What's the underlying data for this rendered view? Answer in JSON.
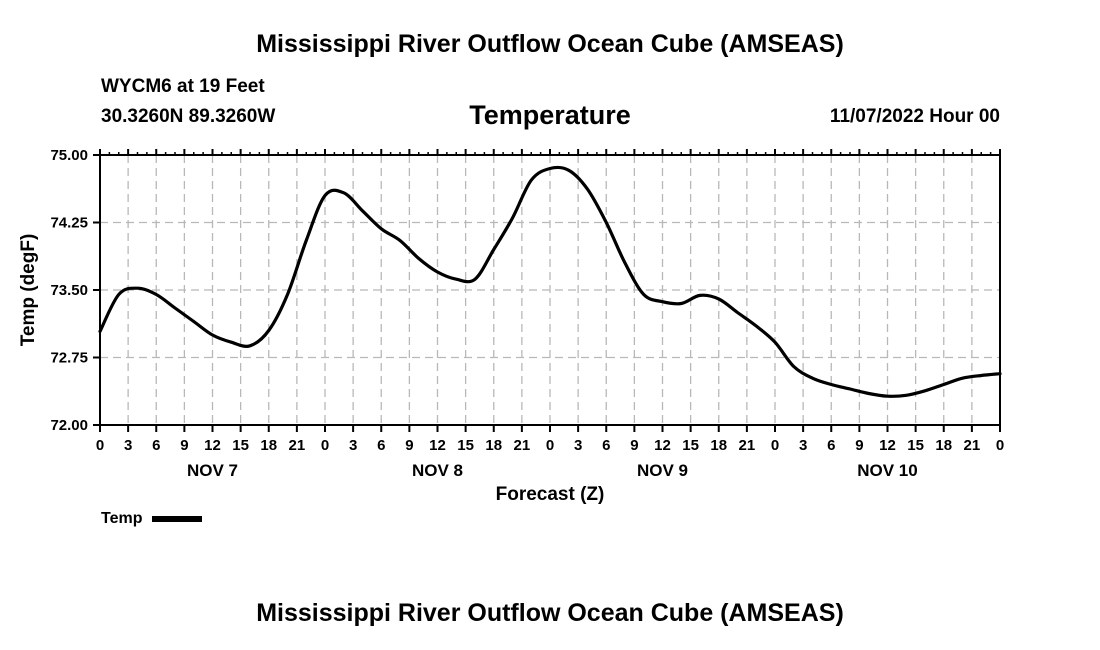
{
  "header": {
    "title": "Mississippi River Outflow Ocean Cube (AMSEAS)",
    "station": "WYCM6 at 19 Feet",
    "coords": "30.3260N  89.3260W",
    "chart_title": "Temperature",
    "date": "11/07/2022 Hour 00"
  },
  "footer": {
    "title": "Mississippi River Outflow Ocean Cube (AMSEAS)"
  },
  "colors": {
    "line": "#000000",
    "grid": "#b8b8b8",
    "background": "#ffffff"
  },
  "chart_data": {
    "type": "line",
    "title": "Temperature",
    "xlabel": "Forecast (Z)",
    "ylabel": "Temp (degF)",
    "ylim": [
      72.0,
      75.0
    ],
    "yticks": [
      "72.00",
      "72.75",
      "73.50",
      "74.25",
      "75.00"
    ],
    "xlim": [
      0,
      96
    ],
    "xtick_step_hours": 3,
    "xtick_labels": [
      "0",
      "3",
      "6",
      "9",
      "12",
      "15",
      "18",
      "21",
      "0",
      "3",
      "6",
      "9",
      "12",
      "15",
      "18",
      "21",
      "0",
      "3",
      "6",
      "9",
      "12",
      "15",
      "18",
      "21",
      "0",
      "3",
      "6",
      "9",
      "12",
      "15",
      "18",
      "21",
      "0"
    ],
    "day_labels": [
      {
        "label": "NOV 7",
        "hour": 12
      },
      {
        "label": "NOV 8",
        "hour": 36
      },
      {
        "label": "NOV 9",
        "hour": 60
      },
      {
        "label": "NOV 10",
        "hour": 84
      }
    ],
    "grid": true,
    "legend": "bottom-left",
    "series": [
      {
        "name": "Temp",
        "x": [
          0,
          2,
          4,
          6,
          8,
          10,
          12,
          14,
          16,
          18,
          20,
          22,
          24,
          26,
          28,
          30,
          32,
          34,
          36,
          38,
          40,
          42,
          44,
          46,
          48,
          50,
          52,
          54,
          56,
          58,
          60,
          62,
          64,
          66,
          68,
          70,
          72,
          74,
          76,
          78,
          80,
          82,
          84,
          86,
          88,
          90,
          92,
          94,
          96
        ],
        "values": [
          73.04,
          73.45,
          73.52,
          73.45,
          73.3,
          73.15,
          73.0,
          72.92,
          72.88,
          73.05,
          73.45,
          74.05,
          74.55,
          74.58,
          74.38,
          74.18,
          74.05,
          73.85,
          73.7,
          73.62,
          73.62,
          73.95,
          74.3,
          74.72,
          74.85,
          74.83,
          74.62,
          74.25,
          73.8,
          73.45,
          73.37,
          73.35,
          73.44,
          73.4,
          73.25,
          73.1,
          72.92,
          72.65,
          72.52,
          72.45,
          72.4,
          72.35,
          72.32,
          72.33,
          72.38,
          72.45,
          72.52,
          72.55,
          72.57
        ]
      }
    ]
  }
}
